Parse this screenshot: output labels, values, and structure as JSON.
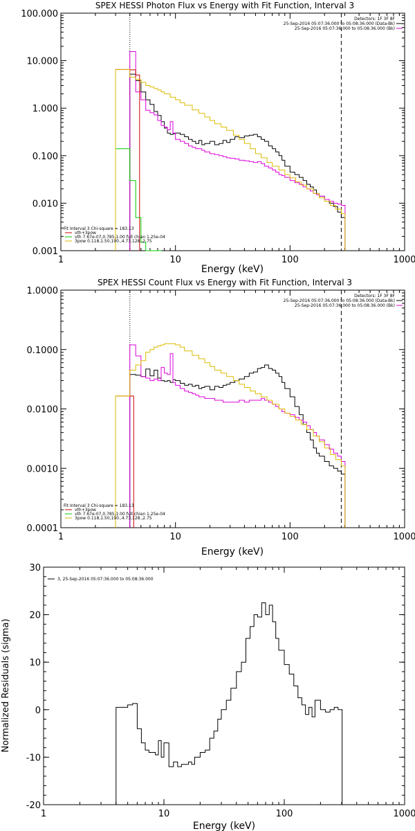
{
  "chart_data": [
    {
      "type": "line",
      "id": "photon",
      "title": "SPEX HESSI Photon Flux vs Energy with Fit Function, Interval 3",
      "xlabel": "Energy (keV)",
      "ylabel": "",
      "xscale": "log",
      "yscale": "log",
      "xlim": [
        1,
        1000
      ],
      "ylim": [
        0.001,
        100
      ],
      "xticks": [
        1,
        10,
        100,
        1000
      ],
      "xtick_labels": [
        "1",
        "10",
        "100",
        "1000"
      ],
      "yticks": [
        0.001,
        0.01,
        0.1,
        1,
        10,
        100
      ],
      "ytick_labels": [
        "0.001",
        "0.010",
        "0.100",
        "1.000",
        "10.000",
        "100.000"
      ],
      "vlines": [
        {
          "x": 4,
          "style": "dotted"
        },
        {
          "x": 280,
          "style": "dashed"
        }
      ],
      "header_legend": [
        {
          "text": "Detectors: 1F 3F 8F",
          "color": ""
        },
        {
          "text": "25-Sep-2016 05:07:36.000 to 05:08:36.000 (Data-Bk)",
          "color": "#000000"
        },
        {
          "text": "25-Sep-2016 05:07:36.000 to 05:08:36.000 (Bk)",
          "color": "#dd00dd"
        }
      ],
      "legend_block": [
        {
          "text": "Fit Interval 3   Chi-square = 183.13",
          "color": ""
        },
        {
          "text": "vth+3pow",
          "color": "#cc0000"
        },
        {
          "text": "vth 7.67e-07,0.785,1.00  full chian 1.25e-04",
          "color": "#00cc00"
        },
        {
          "text": "3pow 0.118,1.50,190.,4.73,128.,2.75",
          "color": "#ddbb00"
        }
      ],
      "series": [
        {
          "name": "Data-Bk",
          "color": "#000000",
          "x": [
            4,
            4.5,
            5,
            5.5,
            6,
            6.5,
            7,
            7.5,
            8,
            8.5,
            9,
            9.5,
            10,
            11,
            12,
            13,
            14,
            15,
            16,
            17,
            18,
            20,
            22,
            24,
            26,
            28,
            30,
            33,
            36,
            40,
            44,
            48,
            52,
            56,
            60,
            65,
            70,
            75,
            80,
            85,
            90,
            100,
            110,
            120,
            130,
            140,
            150,
            160,
            170,
            180,
            200,
            220,
            240,
            260,
            280
          ],
          "y": [
            5.2,
            3.8,
            2.2,
            1.5,
            1.2,
            0.85,
            0.7,
            0.52,
            0.38,
            0.3,
            0.28,
            0.29,
            0.3,
            0.28,
            0.25,
            0.22,
            0.2,
            0.18,
            0.21,
            0.17,
            0.18,
            0.2,
            0.17,
            0.18,
            0.21,
            0.19,
            0.22,
            0.25,
            0.24,
            0.26,
            0.27,
            0.28,
            0.25,
            0.22,
            0.2,
            0.16,
            0.14,
            0.12,
            0.1,
            0.08,
            0.06,
            0.045,
            0.04,
            0.035,
            0.03,
            0.025,
            0.022,
            0.019,
            0.016,
            0.014,
            0.012,
            0.01,
            0.0085,
            0.0065,
            0.005
          ]
        },
        {
          "name": "Bk",
          "color": "#dd00dd",
          "x": [
            4,
            4.5,
            5,
            5.5,
            6,
            6.5,
            7,
            7.5,
            8,
            8.5,
            9,
            9.5,
            10,
            11,
            12,
            13,
            14,
            15,
            16,
            17,
            18,
            20,
            22,
            24,
            26,
            28,
            30,
            33,
            36,
            40,
            44,
            48,
            52,
            56,
            60,
            65,
            70,
            75,
            80,
            85,
            90,
            100,
            110,
            120,
            130,
            140,
            150,
            160,
            170,
            180,
            200,
            220,
            240,
            260,
            280
          ],
          "y": [
            15.5,
            2.2,
            1.5,
            0.9,
            0.8,
            0.72,
            0.55,
            0.43,
            0.4,
            0.35,
            0.52,
            0.3,
            0.22,
            0.2,
            0.18,
            0.16,
            0.15,
            0.14,
            0.14,
            0.13,
            0.12,
            0.11,
            0.105,
            0.1,
            0.095,
            0.09,
            0.088,
            0.085,
            0.08,
            0.078,
            0.075,
            0.072,
            0.075,
            0.068,
            0.06,
            0.055,
            0.05,
            0.045,
            0.04,
            0.038,
            0.035,
            0.03,
            0.027,
            0.025,
            0.022,
            0.02,
            0.018,
            0.016,
            0.015,
            0.014,
            0.012,
            0.011,
            0.01,
            0.0095,
            0.009
          ]
        },
        {
          "name": "vth+3pow",
          "color": "#cc0000",
          "x": [
            3.0,
            3.5,
            4,
            4.5
          ],
          "y": [
            6.5,
            6.5,
            6.4,
            5.0
          ]
        },
        {
          "name": "vth",
          "color": "#00cc00",
          "x": [
            3.0,
            3.5,
            4,
            4.5,
            5,
            5.5,
            6,
            6.5,
            7
          ],
          "y": [
            0.14,
            0.14,
            0.03,
            0.005,
            0.0015,
            0.001,
            0.001,
            0.001,
            0.001
          ]
        },
        {
          "name": "3pow",
          "color": "#ddbb00",
          "x": [
            3.0,
            3.5,
            4,
            4.5,
            5,
            5.5,
            6,
            6.5,
            7,
            7.5,
            8,
            9,
            10,
            11,
            12,
            14,
            16,
            18,
            20,
            22,
            25,
            28,
            32,
            36,
            40,
            45,
            50,
            56,
            63,
            70,
            80,
            90,
            100,
            112,
            125,
            140,
            160,
            180,
            200,
            225,
            250,
            280
          ],
          "y": [
            6.5,
            6.5,
            4.5,
            4.0,
            3.5,
            3.0,
            2.8,
            2.6,
            2.4,
            2.2,
            2.0,
            1.7,
            1.5,
            1.3,
            1.15,
            0.92,
            0.78,
            0.65,
            0.55,
            0.47,
            0.4,
            0.34,
            0.27,
            0.22,
            0.18,
            0.14,
            0.11,
            0.09,
            0.072,
            0.06,
            0.05,
            0.04,
            0.034,
            0.028,
            0.024,
            0.02,
            0.016,
            0.013,
            0.011,
            0.009,
            0.0075,
            0.006
          ]
        }
      ]
    },
    {
      "type": "line",
      "id": "count",
      "title": "SPEX HESSI Count Flux vs Energy with Fit Function, Interval 3",
      "xlabel": "Energy (keV)",
      "ylabel": "",
      "xscale": "log",
      "yscale": "log",
      "xlim": [
        1,
        1000
      ],
      "ylim": [
        0.0001,
        1
      ],
      "xticks": [
        1,
        10,
        100,
        1000
      ],
      "xtick_labels": [
        "1",
        "10",
        "100",
        "1000"
      ],
      "yticks": [
        0.0001,
        0.001,
        0.01,
        0.1,
        1
      ],
      "ytick_labels": [
        "0.0001",
        "0.0010",
        "0.0100",
        "0.1000",
        "1.0000"
      ],
      "vlines": [
        {
          "x": 4,
          "style": "dotted"
        },
        {
          "x": 280,
          "style": "dashed"
        }
      ],
      "header_legend": [
        {
          "text": "Detectors: 1F 3F 8F",
          "color": ""
        },
        {
          "text": "25-Sep-2016 05:07:36.000 to 05:08:36.000 (Data-Bk)",
          "color": "#000000"
        },
        {
          "text": "25-Sep-2016 05:07:36.000 to 05:08:36.000 (Bk)",
          "color": "#dd00dd"
        }
      ],
      "legend_block": [
        {
          "text": "Fit Interval 3   Chi-square = 183.13",
          "color": ""
        },
        {
          "text": "vth+3pow",
          "color": "#cc0000"
        },
        {
          "text": "vth 7.67e-07,0.785,1.00  full chian 1.25e-04",
          "color": "#00cc00"
        },
        {
          "text": "3pow 0.118,1.50,190.,4.73,128.,2.75",
          "color": "#ddbb00"
        }
      ],
      "series": [
        {
          "name": "Data-Bk",
          "color": "#000000",
          "x": [
            4,
            4.5,
            5,
            5.5,
            6,
            6.5,
            7,
            7.5,
            8,
            8.5,
            9,
            9.5,
            10,
            11,
            12,
            13,
            14,
            15,
            16,
            17,
            18,
            20,
            22,
            24,
            26,
            28,
            30,
            33,
            36,
            40,
            44,
            48,
            52,
            56,
            60,
            65,
            70,
            75,
            80,
            85,
            90,
            100,
            110,
            120,
            130,
            140,
            150,
            160,
            170,
            180,
            200,
            220,
            240,
            260,
            280
          ],
          "y": [
            0.038,
            0.037,
            0.035,
            0.047,
            0.036,
            0.045,
            0.033,
            0.03,
            0.029,
            0.03,
            0.028,
            0.031,
            0.03,
            0.027,
            0.025,
            0.026,
            0.024,
            0.025,
            0.022,
            0.023,
            0.024,
            0.021,
            0.024,
            0.023,
            0.025,
            0.026,
            0.028,
            0.03,
            0.032,
            0.035,
            0.04,
            0.042,
            0.048,
            0.05,
            0.055,
            0.048,
            0.045,
            0.04,
            0.035,
            0.028,
            0.022,
            0.016,
            0.011,
            0.008,
            0.0055,
            0.004,
            0.003,
            0.0022,
            0.0018,
            0.0016,
            0.0013,
            0.0011,
            0.001,
            0.0009,
            0.0008
          ]
        },
        {
          "name": "Bk",
          "color": "#dd00dd",
          "x": [
            4,
            4.5,
            5,
            5.5,
            6,
            6.5,
            7,
            7.5,
            8,
            8.5,
            9,
            9.5,
            10,
            11,
            12,
            13,
            14,
            15,
            16,
            17,
            18,
            20,
            22,
            24,
            26,
            28,
            30,
            33,
            36,
            40,
            44,
            48,
            52,
            56,
            60,
            65,
            70,
            75,
            80,
            85,
            90,
            100,
            110,
            120,
            130,
            140,
            150,
            160,
            170,
            180,
            200,
            220,
            240,
            260,
            280
          ],
          "y": [
            0.12,
            0.078,
            0.035,
            0.033,
            0.03,
            0.032,
            0.03,
            0.05,
            0.04,
            0.038,
            0.085,
            0.028,
            0.025,
            0.022,
            0.02,
            0.019,
            0.018,
            0.017,
            0.016,
            0.016,
            0.015,
            0.015,
            0.014,
            0.014,
            0.013,
            0.013,
            0.013,
            0.013,
            0.014,
            0.013,
            0.014,
            0.014,
            0.014,
            0.015,
            0.014,
            0.013,
            0.012,
            0.011,
            0.01,
            0.009,
            0.0085,
            0.008,
            0.0072,
            0.0065,
            0.006,
            0.0052,
            0.0045,
            0.004,
            0.0035,
            0.003,
            0.0025,
            0.0021,
            0.0018,
            0.0016,
            0.0013
          ]
        },
        {
          "name": "vth+3pow",
          "color": "#cc0000",
          "x": [
            3.0,
            3.5,
            4
          ],
          "y": [
            0.0165,
            0.0165,
            0.0165
          ]
        },
        {
          "name": "3pow",
          "color": "#ddbb00",
          "x": [
            3.0,
            3.5,
            4,
            4.5,
            5,
            5.5,
            6,
            6.5,
            7,
            7.5,
            8,
            9,
            10,
            11,
            12,
            14,
            16,
            18,
            20,
            22,
            25,
            28,
            32,
            36,
            40,
            45,
            50,
            56,
            63,
            70,
            80,
            90,
            100,
            112,
            125,
            140,
            160,
            180,
            200,
            225,
            250,
            280
          ],
          "y": [
            0.0165,
            0.0165,
            0.045,
            0.055,
            0.065,
            0.09,
            0.1,
            0.11,
            0.115,
            0.12,
            0.125,
            0.125,
            0.12,
            0.11,
            0.095,
            0.08,
            0.07,
            0.06,
            0.052,
            0.045,
            0.04,
            0.035,
            0.03,
            0.026,
            0.023,
            0.02,
            0.018,
            0.016,
            0.014,
            0.012,
            0.01,
            0.0085,
            0.0075,
            0.0065,
            0.0055,
            0.0045,
            0.0035,
            0.0028,
            0.0022,
            0.0017,
            0.0014,
            0.0011
          ]
        }
      ]
    },
    {
      "type": "line",
      "id": "residuals",
      "title": "",
      "xlabel": "Energy (keV)",
      "ylabel": "Normalized Residuals (sigma)",
      "xscale": "log",
      "yscale": "linear",
      "xlim": [
        1,
        1000
      ],
      "ylim": [
        -20,
        30
      ],
      "xticks": [
        1,
        10,
        100,
        1000
      ],
      "xtick_labels": [
        "1",
        "10",
        "100",
        "1000"
      ],
      "yticks": [
        -20,
        -10,
        0,
        10,
        20,
        30
      ],
      "ytick_labels": [
        "-20",
        "-10",
        "0",
        "10",
        "20",
        "30"
      ],
      "legend_block": [
        {
          "text": "3, 25-Sep-2016 05:07:36.000 to 05:08:36.000",
          "color": "#000000"
        }
      ],
      "series": [
        {
          "name": "3, 25-Sep-2016 05:07:36.000 to 05:08:36.000",
          "color": "#000000",
          "x": [
            4,
            4.5,
            5,
            5.5,
            6,
            6.5,
            7,
            7.5,
            8,
            8.5,
            9,
            9.5,
            10,
            11,
            12,
            13,
            14,
            15,
            16,
            17,
            18,
            20,
            22,
            24,
            26,
            28,
            30,
            33,
            36,
            40,
            44,
            48,
            52,
            56,
            60,
            65,
            70,
            75,
            80,
            85,
            90,
            100,
            110,
            120,
            130,
            140,
            150,
            160,
            170,
            180,
            200,
            220,
            240,
            260,
            280
          ],
          "y": [
            0.5,
            0.5,
            1.0,
            1.3,
            -4.0,
            -7.0,
            -8.5,
            -9.0,
            -9.0,
            -9.5,
            -6.5,
            -10.0,
            -7.0,
            -12.0,
            -11.0,
            -12.0,
            -11.5,
            -11.5,
            -11.0,
            -11.5,
            -10.0,
            -9.0,
            -8.5,
            -6.0,
            -4.5,
            -2.0,
            0.0,
            2.0,
            4.5,
            8.0,
            10.0,
            15.0,
            17.5,
            20.0,
            19.5,
            22.5,
            20.0,
            22.0,
            18.5,
            15.0,
            12.5,
            9.5,
            7.5,
            5.0,
            2.5,
            1.0,
            -1.0,
            0.5,
            -1.5,
            2.0,
            0.0,
            -0.5,
            0.0,
            0.5,
            0.0
          ]
        }
      ]
    }
  ]
}
